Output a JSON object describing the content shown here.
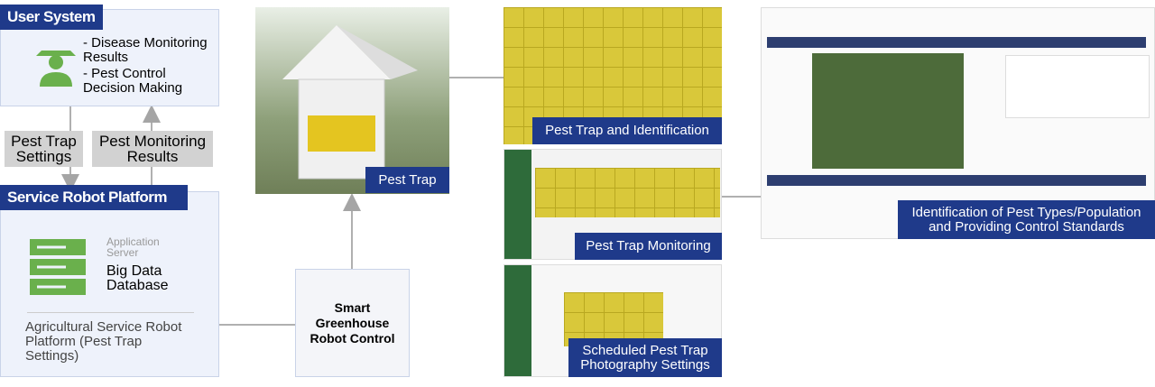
{
  "user_system": {
    "title": "User System",
    "items": [
      "- Disease Monitoring Results",
      "- Pest Control Decision Making"
    ]
  },
  "flows": {
    "down": "Pest Trap Settings",
    "up": "Pest Monitoring Results"
  },
  "platform": {
    "title": "Service Robot Platform",
    "server_label": "Application Server",
    "database": "Big Data Database",
    "description": "Agricultural Service Robot Platform (Pest Trap Settings)"
  },
  "control": {
    "label": "Smart Greenhouse Robot Control"
  },
  "panels": {
    "pest_trap": "Pest Trap",
    "identification": "Pest Trap and Identification",
    "monitoring": "Pest Trap Monitoring",
    "scheduled": "Scheduled Pest Trap Photography Settings",
    "pest_types": "Identification of Pest Types/Population and Providing Control Standards"
  }
}
